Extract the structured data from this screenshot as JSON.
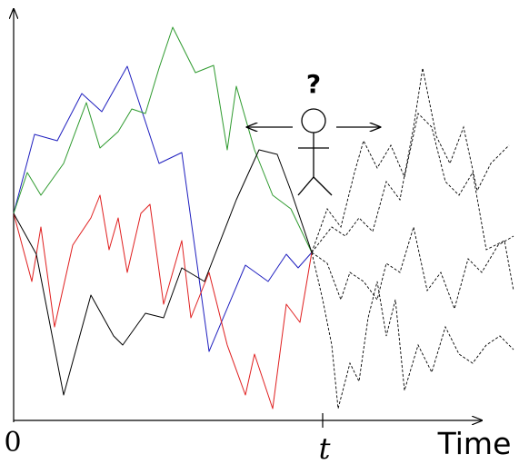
{
  "labels": {
    "origin": "0",
    "time_marker": "t",
    "axis": "Time",
    "question": "?"
  }
}
